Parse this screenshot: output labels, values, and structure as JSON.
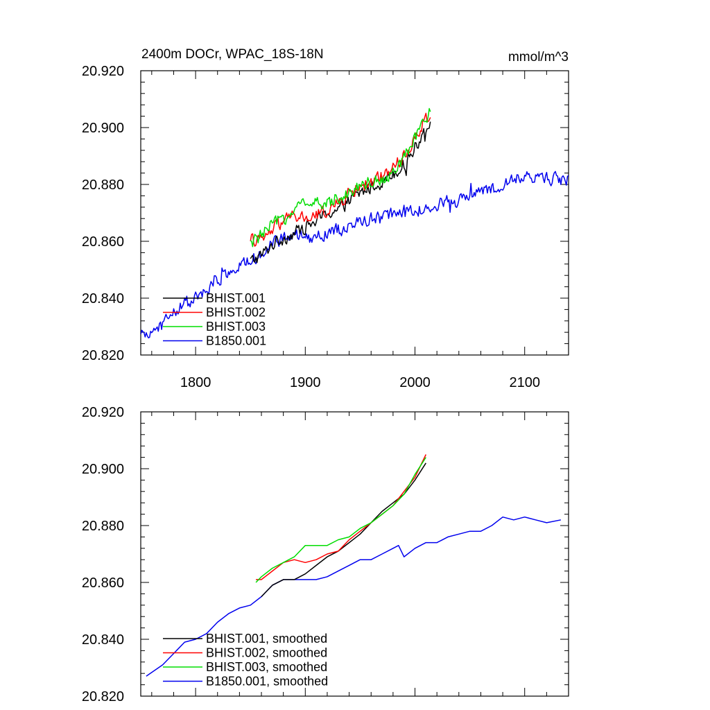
{
  "header": {
    "title": "2400m DOCr, WPAC_18S-18N",
    "units": "mmol/m^3"
  },
  "chart_data": [
    {
      "type": "line",
      "xlim": [
        1750,
        2140
      ],
      "ylim": [
        20.82,
        20.92
      ],
      "yticks": [
        "20.820",
        "20.840",
        "20.860",
        "20.880",
        "20.900",
        "20.920"
      ],
      "xticks": [
        "1800",
        "1900",
        "2000",
        "2100"
      ],
      "legend_position": "bottom-left",
      "series": [
        {
          "name": "BHIST.001",
          "color": "#000000",
          "noisy": true,
          "x": [
            1850,
            1860,
            1870,
            1880,
            1890,
            1900,
            1910,
            1920,
            1930,
            1940,
            1950,
            1960,
            1970,
            1980,
            1990,
            2000,
            2010,
            2014
          ],
          "y": [
            20.853,
            20.855,
            20.859,
            20.861,
            20.863,
            20.865,
            20.867,
            20.87,
            20.871,
            20.874,
            20.877,
            20.879,
            20.881,
            20.884,
            20.887,
            20.893,
            20.9,
            20.903
          ]
        },
        {
          "name": "BHIST.002",
          "color": "#ff0000",
          "noisy": true,
          "x": [
            1850,
            1860,
            1870,
            1880,
            1890,
            1900,
            1910,
            1920,
            1930,
            1940,
            1950,
            1960,
            1970,
            1980,
            1990,
            2000,
            2010,
            2014
          ],
          "y": [
            20.861,
            20.86,
            20.864,
            20.867,
            20.869,
            20.868,
            20.869,
            20.871,
            20.873,
            20.877,
            20.879,
            20.881,
            20.883,
            20.886,
            20.89,
            20.896,
            20.903,
            20.906
          ]
        },
        {
          "name": "BHIST.003",
          "color": "#00dd00",
          "noisy": true,
          "x": [
            1850,
            1860,
            1870,
            1880,
            1890,
            1900,
            1910,
            1920,
            1930,
            1940,
            1950,
            1960,
            1970,
            1980,
            1990,
            2000,
            2010,
            2014
          ],
          "y": [
            20.859,
            20.862,
            20.866,
            20.868,
            20.871,
            20.874,
            20.873,
            20.873,
            20.876,
            20.877,
            20.88,
            20.881,
            20.882,
            20.885,
            20.889,
            20.896,
            20.903,
            20.907
          ]
        },
        {
          "name": "B1850.001",
          "color": "#0000ee",
          "noisy": true,
          "x": [
            1750,
            1760,
            1770,
            1780,
            1790,
            1800,
            1810,
            1820,
            1830,
            1840,
            1850,
            1860,
            1870,
            1880,
            1890,
            1900,
            1910,
            1920,
            1930,
            1940,
            1950,
            1960,
            1970,
            1980,
            1990,
            2000,
            2010,
            2020,
            2030,
            2040,
            2050,
            2060,
            2070,
            2080,
            2090,
            2100,
            2110,
            2120,
            2130,
            2140
          ],
          "y": [
            20.826,
            20.828,
            20.831,
            20.835,
            20.838,
            20.84,
            20.842,
            20.846,
            20.849,
            20.851,
            20.853,
            20.856,
            20.859,
            20.861,
            20.862,
            20.861,
            20.862,
            20.863,
            20.864,
            20.865,
            20.867,
            20.868,
            20.868,
            20.87,
            20.871,
            20.87,
            20.872,
            20.873,
            20.874,
            20.874,
            20.876,
            20.877,
            20.878,
            20.879,
            20.882,
            20.882,
            20.883,
            20.882,
            20.882,
            20.882
          ]
        }
      ]
    },
    {
      "type": "line",
      "xlim": [
        1750,
        2140
      ],
      "ylim": [
        20.82,
        20.92
      ],
      "yticks": [
        "20.820",
        "20.840",
        "20.860",
        "20.880",
        "20.900",
        "20.920"
      ],
      "xticks": [],
      "legend_position": "bottom-left",
      "series": [
        {
          "name": "BHIST.001, smoothed",
          "color": "#000000",
          "noisy": false,
          "x": [
            1860,
            1870,
            1880,
            1890,
            1900,
            1910,
            1920,
            1930,
            1940,
            1950,
            1960,
            1970,
            1980,
            1990,
            2000,
            2010
          ],
          "y": [
            20.855,
            20.859,
            20.861,
            20.861,
            20.863,
            20.866,
            20.869,
            20.871,
            20.874,
            20.877,
            20.881,
            20.885,
            20.888,
            20.891,
            20.896,
            20.902
          ]
        },
        {
          "name": "BHIST.002, smoothed",
          "color": "#ff0000",
          "noisy": false,
          "x": [
            1855,
            1860,
            1870,
            1880,
            1890,
            1900,
            1910,
            1920,
            1930,
            1940,
            1950,
            1960,
            1970,
            1980,
            1990,
            2000,
            2010
          ],
          "y": [
            20.861,
            20.861,
            20.864,
            20.867,
            20.868,
            20.867,
            20.868,
            20.87,
            20.871,
            20.875,
            20.878,
            20.881,
            20.884,
            20.887,
            20.892,
            20.897,
            20.905
          ]
        },
        {
          "name": "BHIST.003, smoothed",
          "color": "#00dd00",
          "noisy": false,
          "x": [
            1855,
            1860,
            1870,
            1880,
            1890,
            1900,
            1910,
            1920,
            1930,
            1940,
            1950,
            1960,
            1970,
            1980,
            1990,
            2000,
            2010
          ],
          "y": [
            20.86,
            20.862,
            20.865,
            20.867,
            20.869,
            20.873,
            20.873,
            20.873,
            20.875,
            20.876,
            20.879,
            20.881,
            20.884,
            20.887,
            20.891,
            20.898,
            20.904
          ]
        },
        {
          "name": "B1850.001, smoothed",
          "color": "#0000ee",
          "noisy": false,
          "x": [
            1755,
            1770,
            1780,
            1790,
            1800,
            1810,
            1820,
            1830,
            1840,
            1850,
            1860,
            1870,
            1880,
            1890,
            1900,
            1910,
            1920,
            1930,
            1940,
            1950,
            1960,
            1970,
            1980,
            1985,
            1990,
            2000,
            2010,
            2020,
            2030,
            2040,
            2050,
            2060,
            2070,
            2080,
            2090,
            2100,
            2110,
            2120,
            2133
          ],
          "y": [
            20.827,
            20.831,
            20.835,
            20.839,
            20.84,
            20.842,
            20.846,
            20.849,
            20.851,
            20.852,
            20.855,
            20.859,
            20.861,
            20.861,
            20.861,
            20.861,
            20.862,
            20.864,
            20.866,
            20.868,
            20.868,
            20.87,
            20.872,
            20.873,
            20.869,
            20.872,
            20.874,
            20.874,
            20.876,
            20.877,
            20.878,
            20.878,
            20.88,
            20.883,
            20.882,
            20.883,
            20.882,
            20.881,
            20.882
          ]
        }
      ]
    }
  ]
}
